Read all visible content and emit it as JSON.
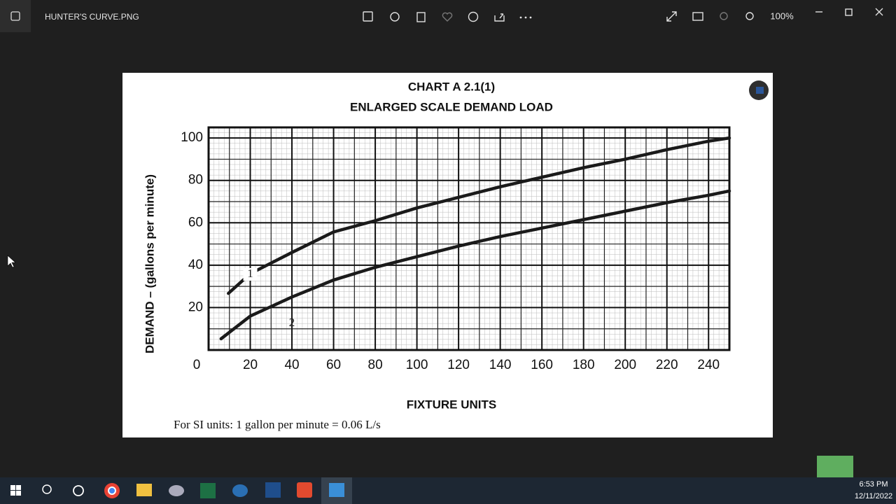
{
  "window": {
    "title": "HUNTER'S CURVE.PNG",
    "zoom": "100%"
  },
  "chart_data": {
    "type": "line",
    "title": "CHART A 2.1(1)",
    "subtitle": "ENLARGED SCALE DEMAND LOAD",
    "x_label": "FIXTURE UNITS",
    "y_label": "DEMAND – (gallons per minute)",
    "note": "For SI units: 1 gallon per minute = 0.06 L/s",
    "xlim": [
      0,
      250
    ],
    "xticks": [
      0,
      20,
      40,
      60,
      80,
      100,
      120,
      140,
      160,
      180,
      200,
      220,
      240
    ],
    "ylim": [
      0,
      105
    ],
    "yticks": [
      20,
      40,
      60,
      80,
      100
    ],
    "grid": true,
    "series": [
      {
        "name": "1",
        "color": "#1a1a1a",
        "x": [
          9.5,
          20,
          40,
          60,
          80,
          100,
          120,
          140,
          160,
          180,
          200,
          220,
          240,
          250
        ],
        "values": [
          26.7,
          36,
          46,
          55.7,
          61,
          67,
          72,
          77,
          81.5,
          86,
          90,
          94.5,
          98.5,
          100
        ]
      },
      {
        "name": "2",
        "color": "#1a1a1a",
        "x": [
          6,
          20,
          40,
          60,
          80,
          100,
          120,
          140,
          160,
          180,
          200,
          220,
          240,
          250
        ],
        "values": [
          5.3,
          16,
          25,
          33,
          39,
          44,
          49,
          53.5,
          57.5,
          61.5,
          65.5,
          69.5,
          73,
          75
        ]
      }
    ]
  },
  "taskbar": {
    "time": "6:53 PM",
    "date": "12/11/2022"
  }
}
